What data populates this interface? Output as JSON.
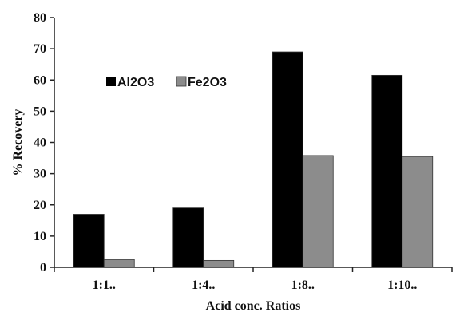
{
  "chart_data": {
    "type": "bar",
    "title": "",
    "xlabel": "Acid conc. Ratios",
    "ylabel": "% Recovery",
    "categories": [
      "1:1..",
      "1:4..",
      "1:8..",
      "1:10.."
    ],
    "series": [
      {
        "name": "Al2O3",
        "values": [
          17,
          19,
          69,
          61.5
        ],
        "color": "#000000"
      },
      {
        "name": "Fe2O3",
        "values": [
          2.5,
          2.2,
          35.8,
          35.5
        ],
        "color": "#8c8c8c"
      }
    ],
    "ylim": [
      0,
      80
    ],
    "yticks": [
      0,
      10,
      20,
      30,
      40,
      50,
      60,
      70,
      80
    ],
    "grid": false,
    "legend": "top-left"
  }
}
